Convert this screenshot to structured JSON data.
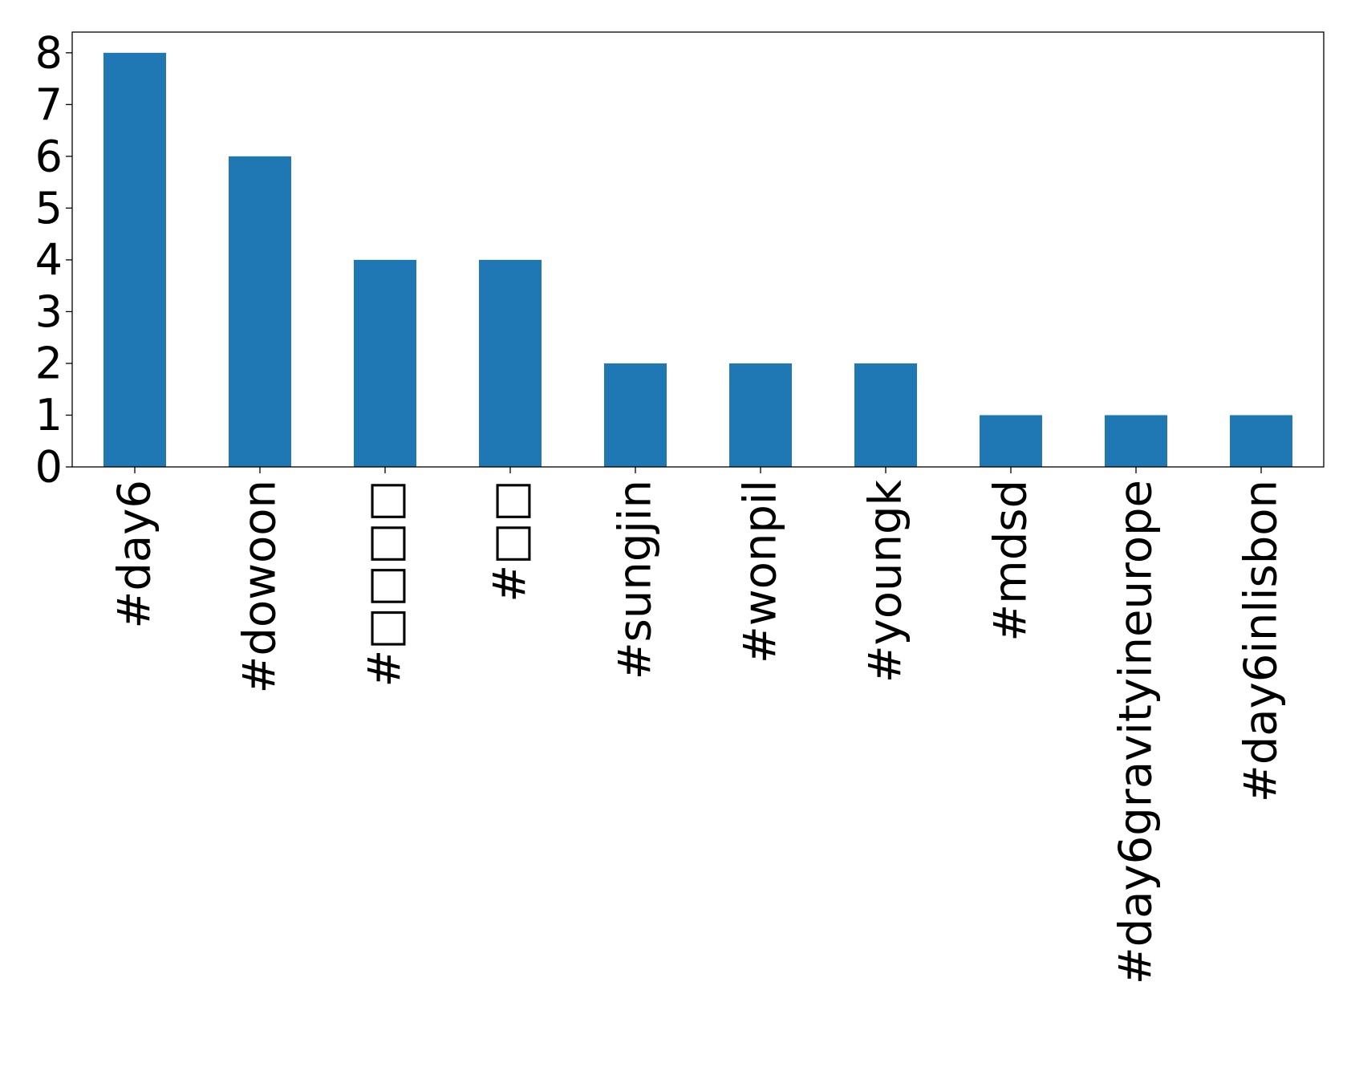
{
  "chart_data": {
    "type": "bar",
    "title": "",
    "xlabel": "",
    "ylabel": "",
    "categories": [
      "#day6",
      "#dowoon",
      "#□□□□",
      "#□□",
      "#sungjin",
      "#wonpil",
      "#youngk",
      "#mdsd",
      "#day6gravityineurope",
      "#day6inlisbon"
    ],
    "values": [
      8,
      6,
      4,
      4,
      2,
      2,
      2,
      1,
      1,
      1
    ],
    "yticks": [
      "0",
      "1",
      "2",
      "3",
      "4",
      "5",
      "6",
      "7",
      "8"
    ],
    "ylim": [
      0,
      8.4
    ],
    "grid": false,
    "legend": "none",
    "bar_color": "#1f77b4"
  }
}
